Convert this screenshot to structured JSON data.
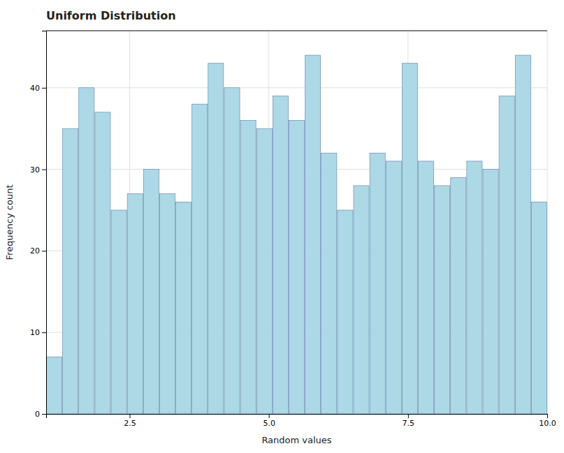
{
  "chart_data": {
    "type": "histogram",
    "title": "Uniform Distribution",
    "xlabel": "Random values",
    "ylabel": "Frequency count",
    "bins": [
      1.0,
      1.2903225806451613,
      1.5806451612903225,
      1.870967741935484,
      2.161290322580645,
      2.4516129032258065,
      2.741935483870968,
      3.032258064516129,
      3.3225806451612905,
      3.6129032258064515,
      3.903225806451613,
      4.193548387096774,
      4.483870967741936,
      4.774193548387097,
      5.064516129032258,
      5.354838709677419,
      5.645161290322581,
      5.935483870967742,
      6.225806451612903,
      6.516129032258064,
      6.806451612903226,
      7.096774193548387,
      7.387096774193548,
      7.67741935483871,
      7.967741935483871,
      8.258064516129032,
      8.548387096774194,
      8.838709677419354,
      9.129032258064516,
      9.419354838709678,
      9.709677419354838,
      10.0
    ],
    "values": [
      7,
      35,
      40,
      37,
      25,
      27,
      30,
      27,
      26,
      38,
      43,
      40,
      36,
      35,
      39,
      36,
      44,
      32,
      25,
      28,
      32,
      31,
      43,
      31,
      28,
      29,
      31,
      30,
      39,
      44,
      26
    ],
    "color": "#ADD8E6",
    "xlim": [
      1.0,
      10.0
    ],
    "xticks": [
      2.5,
      {
        "value": 5.0,
        "label": "5.0"
      },
      7.5,
      {
        "value": 10.0,
        "label": "10.0"
      }
    ],
    "ylim": [
      0,
      47
    ],
    "yticks": [
      0,
      10,
      20,
      30,
      40
    ],
    "grid": true
  }
}
